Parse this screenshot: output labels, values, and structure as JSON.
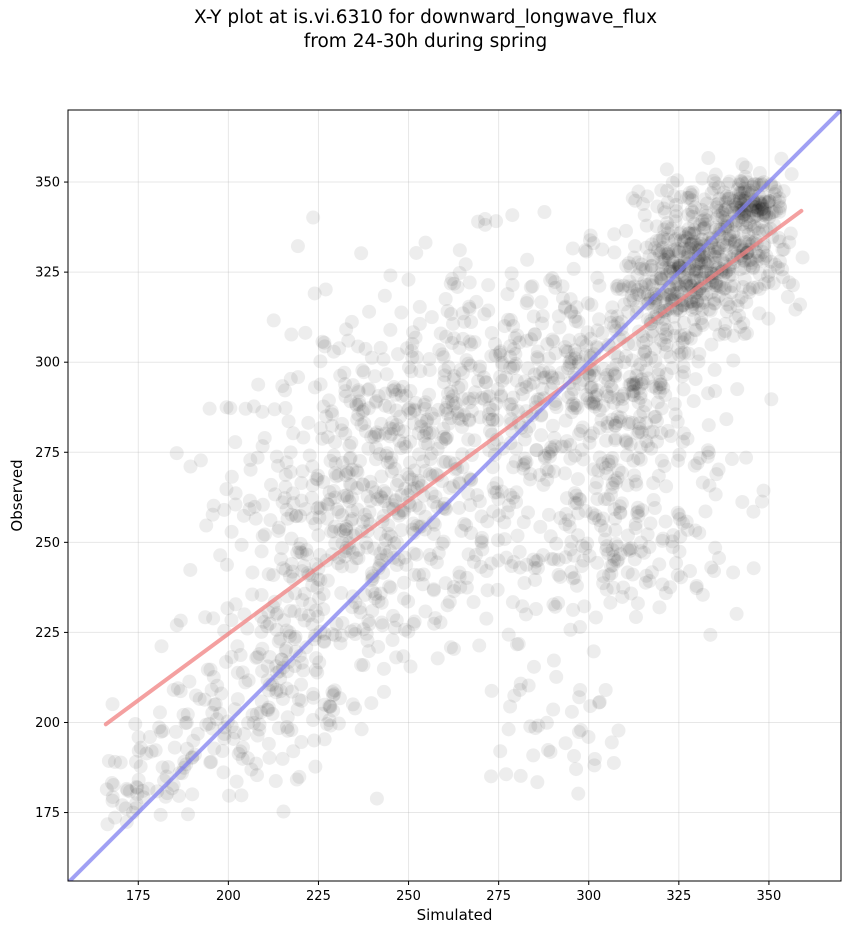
{
  "chart_data": {
    "type": "scatter",
    "title": [
      "X-Y plot at is.vi.6310 for downward_longwave_flux",
      "from 24-30h during spring"
    ],
    "xlabel": "Simulated",
    "ylabel": "Observed",
    "xlim": [
      155.5,
      370
    ],
    "ylim": [
      156,
      370
    ],
    "xticks": [
      175,
      200,
      225,
      250,
      275,
      300,
      325,
      350
    ],
    "yticks": [
      175,
      200,
      225,
      250,
      275,
      300,
      325,
      350
    ],
    "grid": true,
    "point_color": "#000000",
    "point_opacity": 0.07,
    "regression_line": {
      "color": "#f08080",
      "x": [
        166,
        359
      ],
      "y": [
        199.5,
        342
      ]
    },
    "identity_line": {
      "color": "#8080f0",
      "x": [
        155.5,
        370
      ],
      "y": [
        155.5,
        370
      ]
    },
    "clusters": [
      {
        "cx": 335,
        "cy": 330,
        "sx": 10,
        "sy": 10,
        "n": 420
      },
      {
        "cx": 345,
        "cy": 344,
        "sx": 4,
        "sy": 4,
        "n": 120
      },
      {
        "cx": 322,
        "cy": 318,
        "sx": 6,
        "sy": 7,
        "n": 120
      },
      {
        "cx": 310,
        "cy": 300,
        "sx": 14,
        "sy": 18,
        "n": 230
      },
      {
        "cx": 315,
        "cy": 260,
        "sx": 14,
        "sy": 18,
        "n": 140
      },
      {
        "cx": 290,
        "cy": 290,
        "sx": 18,
        "sy": 24,
        "n": 240
      },
      {
        "cx": 265,
        "cy": 280,
        "sx": 16,
        "sy": 24,
        "n": 220
      },
      {
        "cx": 245,
        "cy": 258,
        "sx": 14,
        "sy": 22,
        "n": 240
      },
      {
        "cx": 240,
        "cy": 290,
        "sx": 14,
        "sy": 16,
        "n": 110
      },
      {
        "cx": 225,
        "cy": 245,
        "sx": 12,
        "sy": 18,
        "n": 140
      },
      {
        "cx": 215,
        "cy": 212,
        "sx": 10,
        "sy": 12,
        "n": 110
      },
      {
        "cx": 200,
        "cy": 200,
        "sx": 12,
        "sy": 12,
        "n": 70
      },
      {
        "cx": 185,
        "cy": 188,
        "sx": 9,
        "sy": 9,
        "n": 50
      },
      {
        "cx": 172,
        "cy": 178,
        "sx": 5,
        "sy": 6,
        "n": 25
      },
      {
        "cx": 290,
        "cy": 200,
        "sx": 10,
        "sy": 10,
        "n": 40
      },
      {
        "cx": 205,
        "cy": 265,
        "sx": 12,
        "sy": 15,
        "n": 40
      },
      {
        "cx": 310,
        "cy": 243,
        "sx": 12,
        "sy": 8,
        "n": 60
      }
    ]
  }
}
